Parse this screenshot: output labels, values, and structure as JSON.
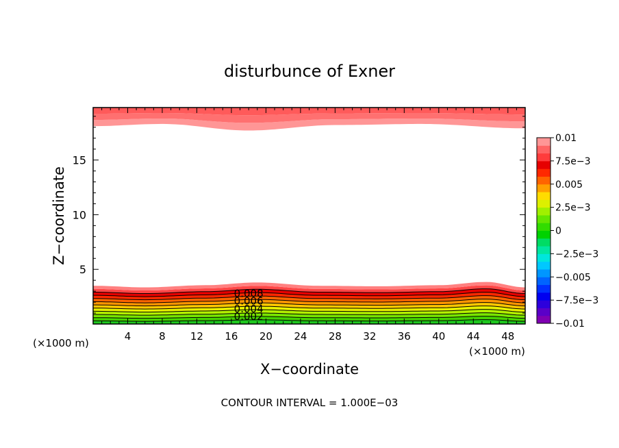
{
  "chart_data": {
    "type": "contour",
    "title": "disturbunce of Exner",
    "xlabel": "X−coordinate",
    "ylabel": "Z−coordinate",
    "x_unit_left": "(×1000 m)",
    "x_unit_right": "(×1000 m)",
    "footer": "CONTOUR INTERVAL = 1.000E−03",
    "xlim": [
      0,
      50
    ],
    "ylim": [
      0,
      19.8
    ],
    "x_ticks": [
      4,
      8,
      12,
      16,
      20,
      24,
      28,
      32,
      36,
      40,
      44,
      48
    ],
    "x_tick_labels": [
      "4",
      "8",
      "12",
      "16",
      "20",
      "24",
      "28",
      "32",
      "36",
      "40",
      "44",
      "48"
    ],
    "y_ticks": [
      5,
      10,
      15
    ],
    "y_tick_labels": [
      "5",
      "10",
      "15"
    ],
    "contour_interval": 0.001,
    "contour_labels": [
      {
        "text": "0.008",
        "x": 18.0,
        "z": 2.85
      },
      {
        "text": "0.006",
        "x": 18.0,
        "z": 2.15
      },
      {
        "text": "0.004",
        "x": 18.0,
        "z": 1.45
      },
      {
        "text": "0.002",
        "x": 18.0,
        "z": 0.75
      }
    ],
    "colorbar": {
      "min": -0.01,
      "max": 0.01,
      "labels": [
        {
          "text": "0.01",
          "value": 0.01
        },
        {
          "text": "7.5e−3",
          "value": 0.0075
        },
        {
          "text": "0.005",
          "value": 0.005
        },
        {
          "text": "2.5e−3",
          "value": 0.0025
        },
        {
          "text": "0",
          "value": 0
        },
        {
          "text": "−2.5e−3",
          "value": -0.0025
        },
        {
          "text": "−0.005",
          "value": -0.005
        },
        {
          "text": "−7.5e−3",
          "value": -0.0075
        },
        {
          "text": "−0.01",
          "value": -0.01
        }
      ],
      "colors": [
        "#7f00b2",
        "#5a00c8",
        "#2d00dc",
        "#0000f0",
        "#0030ff",
        "#0064ff",
        "#0096ff",
        "#00c8ff",
        "#00e6dc",
        "#00e6a0",
        "#00dc64",
        "#00d200",
        "#32dc00",
        "#64e600",
        "#a0f000",
        "#dcf000",
        "#ffdc00",
        "#ffa000",
        "#ff6400",
        "#ff2800",
        "#e60000",
        "#ff3c3c",
        "#ff6464",
        "#ff9696"
      ]
    },
    "bottom_layer": {
      "base_height": 3.5,
      "bump": [
        {
          "x": 0,
          "dz": 0.0
        },
        {
          "x": 6,
          "dz": -0.15
        },
        {
          "x": 13,
          "dz": 0.05
        },
        {
          "x": 19,
          "dz": 0.3
        },
        {
          "x": 26,
          "dz": 0.0
        },
        {
          "x": 33,
          "dz": -0.05
        },
        {
          "x": 40,
          "dz": 0.05
        },
        {
          "x": 45.5,
          "dz": 0.35
        },
        {
          "x": 50,
          "dz": -0.15
        }
      ],
      "band_colors": [
        "#1ec81e",
        "#46d200",
        "#78e600",
        "#b4f000",
        "#e6f000",
        "#ffc800",
        "#ff9600",
        "#ff6400",
        "#ff2800",
        "#e60000",
        "#ff4646",
        "#ff8080"
      ]
    },
    "top_layer": {
      "bottom_edge": [
        {
          "x": 0,
          "z": 18.1
        },
        {
          "x": 8,
          "z": 18.3
        },
        {
          "x": 18,
          "z": 17.7
        },
        {
          "x": 28,
          "z": 18.2
        },
        {
          "x": 38,
          "z": 18.3
        },
        {
          "x": 50,
          "z": 17.9
        }
      ],
      "band_colors": [
        "#ff9696",
        "#ff7070",
        "#ff5a5a"
      ]
    }
  }
}
